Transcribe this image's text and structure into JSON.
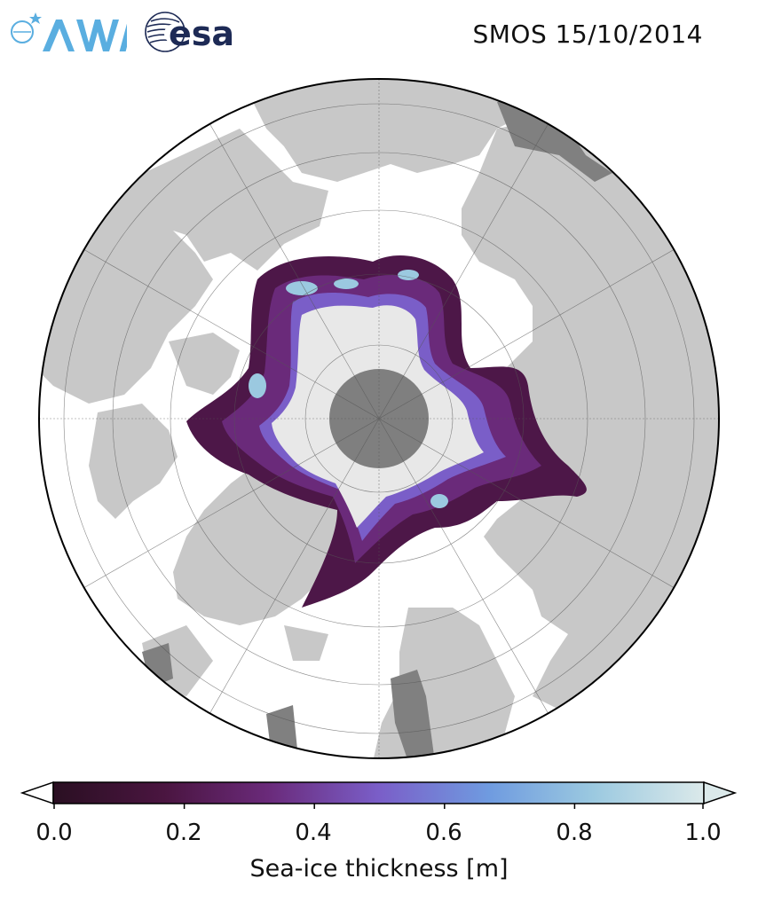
{
  "header": {
    "title": "SMOS 15/10/2014",
    "logos": {
      "awi": "AWI",
      "esa": "esa"
    }
  },
  "colors": {
    "land": "#c8c8c8",
    "land_dark": "#808080",
    "ocean": "#ffffff",
    "pole_hole": "#7f7f7f",
    "thick_ice": "#e8e8e8",
    "awi_blue": "#5aaee0",
    "esa_navy": "#1d2a55"
  },
  "colorbar": {
    "label": "Sea-ice thickness [m]",
    "ticks": [
      "0.0",
      "0.2",
      "0.4",
      "0.6",
      "0.8",
      "1.0"
    ],
    "range": [
      0.0,
      1.0
    ],
    "extend": "both",
    "colors": [
      "#2a0f22",
      "#4a1540",
      "#6a2a7a",
      "#7a5ec8",
      "#6f9be0",
      "#9bc9e0",
      "#dbe9ea"
    ]
  }
}
